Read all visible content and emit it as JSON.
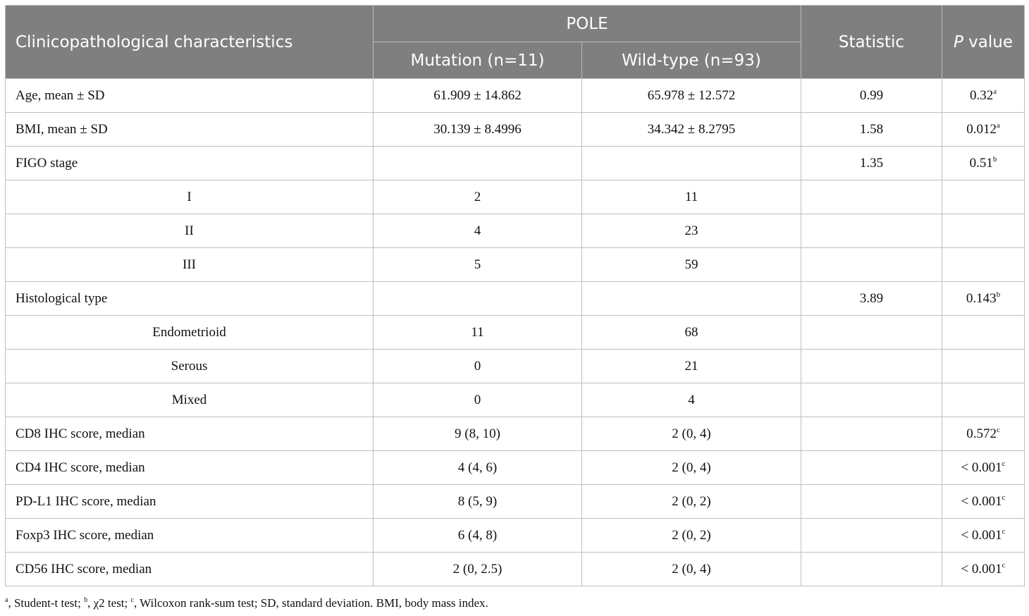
{
  "header": {
    "col1": "Clinicopathological characteristics",
    "group": "POLE",
    "mutation": "Mutation (n=11)",
    "wild": "Wild-type (n=93)",
    "statistic": "Statistic",
    "pvalue_italic": "P",
    "pvalue_rest": " value"
  },
  "rows": [
    {
      "label": "Age, mean ± SD",
      "mut": "61.909 ± 14.862",
      "wild": "65.978 ± 12.572",
      "stat": "0.99",
      "p": "0.32",
      "sup": "a",
      "indent": false
    },
    {
      "label": "BMI, mean ± SD",
      "mut": "30.139 ± 8.4996",
      "wild": "34.342 ± 8.2795",
      "stat": "1.58",
      "p": "0.012",
      "sup": "a",
      "indent": false
    },
    {
      "label": "FIGO stage",
      "mut": "",
      "wild": "",
      "stat": "1.35",
      "p": "0.51",
      "sup": "b",
      "indent": false
    },
    {
      "label": "I",
      "mut": "2",
      "wild": "11",
      "stat": "",
      "p": "",
      "sup": "",
      "indent": true
    },
    {
      "label": "II",
      "mut": "4",
      "wild": "23",
      "stat": "",
      "p": "",
      "sup": "",
      "indent": true
    },
    {
      "label": "III",
      "mut": "5",
      "wild": "59",
      "stat": "",
      "p": "",
      "sup": "",
      "indent": true
    },
    {
      "label": "Histological type",
      "mut": "",
      "wild": "",
      "stat": "3.89",
      "p": "0.143",
      "sup": "b",
      "indent": false
    },
    {
      "label": "Endometrioid",
      "mut": "11",
      "wild": "68",
      "stat": "",
      "p": "",
      "sup": "",
      "indent": true
    },
    {
      "label": "Serous",
      "mut": "0",
      "wild": "21",
      "stat": "",
      "p": "",
      "sup": "",
      "indent": true
    },
    {
      "label": "Mixed",
      "mut": "0",
      "wild": "4",
      "stat": "",
      "p": "",
      "sup": "",
      "indent": true
    },
    {
      "label": "CD8 IHC score, median",
      "mut": "9 (8, 10)",
      "wild": "2 (0, 4)",
      "stat": "",
      "p": "0.572",
      "sup": "c",
      "indent": false
    },
    {
      "label": "CD4 IHC score, median",
      "mut": "4 (4, 6)",
      "wild": "2 (0, 4)",
      "stat": "",
      "p": "< 0.001",
      "sup": "c",
      "indent": false
    },
    {
      "label": "PD-L1 IHC score, median",
      "mut": "8 (5, 9)",
      "wild": "2 (0, 2)",
      "stat": "",
      "p": "< 0.001",
      "sup": "c",
      "indent": false
    },
    {
      "label": "Foxp3 IHC score, median",
      "mut": "6 (4, 8)",
      "wild": "2 (0, 2)",
      "stat": "",
      "p": "< 0.001",
      "sup": "c",
      "indent": false
    },
    {
      "label": "CD56 IHC score, median",
      "mut": "2 (0, 2.5)",
      "wild": "2 (0, 4)",
      "stat": "",
      "p": "< 0.001",
      "sup": "c",
      "indent": false
    }
  ],
  "footnote": {
    "a_sup": "a",
    "a_text": ", Student-t test; ",
    "b_sup": "b",
    "b_text": ", χ2 test; ",
    "c_sup": "c",
    "c_text": ", Wilcoxon rank-sum test; SD, standard deviation. BMI, body mass index."
  },
  "colors": {
    "header_bg": "#7f7f7f",
    "header_text": "#ffffff",
    "border": "#bfbfbf"
  }
}
